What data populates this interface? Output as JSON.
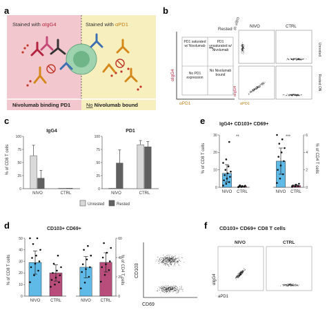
{
  "panels": {
    "a": {
      "letter": "a",
      "left_title_pre": "Stained with ",
      "left_title_hl": "αIgG4",
      "right_title_pre": "Stained with ",
      "right_title_hl": "αPD1",
      "left_caption": "Nivolumab binding PD1",
      "right_caption_no": "No",
      "right_caption_rest": " Nivolumab bound",
      "colors": {
        "left_bg": "#f2c7cd",
        "right_bg": "#f7efbe",
        "cell": "#9fd3b0",
        "antibody": "#d4881a",
        "dot": "#c0392b"
      }
    },
    "b": {
      "letter": "b",
      "rested_label": "Rested",
      "in_vitro": "in vitro",
      "quad_tl": "PD1 saturated w/ Nivolumab",
      "quad_tr_pre": "PD1 ",
      "quad_tr_un": "un",
      "quad_tr_post": "saturated w/ Nivolumab",
      "quad_bl": "No PD1 expression",
      "quad_br": "No Nivolumab bound",
      "y_axis": "αIgG4",
      "x_axis": "αPD1",
      "col_nivo": "NIVO",
      "col_ctrl": "CTRL",
      "row_unrested": "Unrested",
      "row_rested": "Rested ON",
      "flow_y": "αIgG4",
      "flow_x": "αPD1"
    },
    "c": {
      "letter": "c",
      "ylabel": "% of CD8 T cells",
      "legend_unrested": "Unrested",
      "legend_rested": "Rested"
    },
    "d": {
      "letter": "d",
      "title": "CD103+ CD69+",
      "ylabel_left": "% of CD8 T cells",
      "ylabel_right": "% of CD4 T cells",
      "flow_y": "CD103",
      "flow_x": "CD69"
    },
    "e": {
      "letter": "e",
      "title": "IgG4+ CD103+ CD69+",
      "ylabel_left": "% of CD8 T cells",
      "ylabel_right": "% of CD4 T cells",
      "sig_left": "**",
      "sig_right": "***"
    },
    "f": {
      "letter": "f",
      "title": "CD103+ CD69+ CD8 T cells",
      "col_nivo": "NIVO",
      "col_ctrl": "CTRL",
      "y_axis": "αIgG4",
      "x_axis": "aPD1"
    }
  },
  "chart_data": [
    {
      "id": "c-igg4",
      "type": "bar",
      "title": "IgG4",
      "categories": [
        "NIVO",
        "CTRL"
      ],
      "series": [
        {
          "name": "Unrested",
          "values": [
            63,
            1
          ],
          "err": [
            20,
            0
          ]
        },
        {
          "name": "Rested",
          "values": [
            20,
            1
          ],
          "err": [
            15,
            0
          ]
        }
      ],
      "ylim": [
        0,
        100
      ],
      "yticks": [
        0,
        25,
        50,
        75,
        100
      ],
      "ylabel": "% of CD8 T cells",
      "colors": {
        "Unrested": "#d9d9d9",
        "Rested": "#606060"
      }
    },
    {
      "id": "c-pd1",
      "type": "bar",
      "title": "PD1",
      "categories": [
        "NIVO",
        "CTRL"
      ],
      "series": [
        {
          "name": "Unrested",
          "values": [
            1,
            84
          ],
          "err": [
            0,
            8
          ]
        },
        {
          "name": "Rested",
          "values": [
            49,
            80
          ],
          "err": [
            25,
            10
          ]
        }
      ],
      "ylim": [
        0,
        100
      ],
      "yticks": [
        0,
        25,
        50,
        75,
        100
      ],
      "colors": {
        "Unrested": "#d9d9d9",
        "Rested": "#606060"
      }
    },
    {
      "id": "d-cd8",
      "type": "bar",
      "categories": [
        "NIVO",
        "CTRL"
      ],
      "values": [
        29,
        20
      ],
      "err": [
        10,
        7
      ],
      "points": [
        [
          12,
          18,
          22,
          25,
          28,
          30,
          33,
          35,
          40,
          45,
          50,
          53
        ],
        [
          8,
          10,
          12,
          14,
          16,
          18,
          20,
          22,
          25,
          28,
          35
        ]
      ],
      "ylim": [
        0,
        50
      ],
      "yticks": [
        0,
        10,
        20,
        30,
        40,
        50
      ],
      "ylabel": "% of CD8 T cells",
      "colors": [
        "#4fb3e6",
        "#b03a6e"
      ]
    },
    {
      "id": "d-cd4",
      "type": "bar",
      "categories": [
        "NIVO",
        "CTRL"
      ],
      "values": [
        30,
        35
      ],
      "err": [
        11,
        10
      ],
      "points": [
        [
          8,
          14,
          20,
          25,
          28,
          30,
          33,
          38,
          42,
          48,
          52
        ],
        [
          15,
          22,
          27,
          30,
          33,
          36,
          40,
          45,
          50,
          55
        ]
      ],
      "ylim": [
        0,
        60
      ],
      "yticks": [
        0,
        20,
        40,
        60
      ],
      "ylabel": "% of CD4 T cells",
      "colors": [
        "#4fb3e6",
        "#b03a6e"
      ]
    },
    {
      "id": "e-cd8",
      "type": "bar",
      "categories": [
        "NIVO",
        "CTRL"
      ],
      "values": [
        8,
        0.5
      ],
      "err": [
        5,
        0.3
      ],
      "points": [
        [
          1,
          2,
          3,
          4,
          5,
          6,
          7,
          8,
          9,
          10,
          12,
          14,
          16,
          26
        ],
        [
          0.1,
          0.2,
          0.3,
          0.5,
          0.7,
          0.9,
          1.1
        ]
      ],
      "ylim": [
        0,
        30
      ],
      "yticks": [
        0,
        10,
        20,
        30
      ],
      "ylabel": "% of CD8 T cells",
      "colors": [
        "#4fb3e6",
        "#b03a6e"
      ]
    },
    {
      "id": "e-cd4",
      "type": "bar",
      "categories": [
        "NIVO",
        "CTRL"
      ],
      "values": [
        3,
        0.2
      ],
      "err": [
        1.5,
        0.1
      ],
      "points": [
        [
          0.5,
          1,
          1.5,
          2,
          2.5,
          3,
          3.5,
          4,
          4.5,
          5,
          5.5,
          6
        ],
        [
          0.05,
          0.1,
          0.15,
          0.2,
          0.3,
          0.4
        ]
      ],
      "ylim": [
        0,
        6
      ],
      "yticks": [
        0,
        2,
        4,
        6
      ],
      "ylabel": "% of CD4 T cells",
      "colors": [
        "#4fb3e6",
        "#b03a6e"
      ]
    }
  ]
}
